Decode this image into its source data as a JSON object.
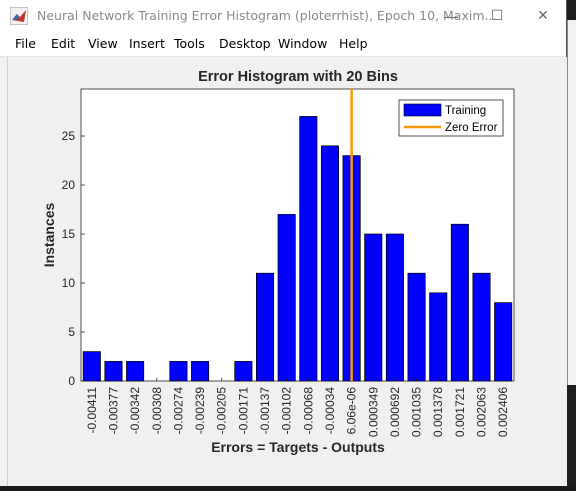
{
  "window": {
    "title": "Neural Network Training Error Histogram (ploterrhist), Epoch 10, Maxim...",
    "minimize_glyph": "—",
    "maximize_glyph": "☐",
    "close_glyph": "✕"
  },
  "menu": [
    "File",
    "Edit",
    "View",
    "Insert",
    "Tools",
    "Desktop",
    "Window",
    "Help"
  ],
  "colors": {
    "bar": "#0000ff",
    "zero_line": "#ff9900"
  },
  "chart_data": {
    "type": "bar",
    "title": "Error Histogram with 20 Bins",
    "xlabel": "Errors = Targets - Outputs",
    "ylabel": "Instances",
    "categories": [
      "-0.00411",
      "-0.00377",
      "-0.00342",
      "-0.00308",
      "-0.00274",
      "-0.00239",
      "-0.00205",
      "-0.00171",
      "-0.00137",
      "-0.00102",
      "-0.00068",
      "-0.00034",
      "6.06e-06",
      "0.000349",
      "0.000692",
      "0.001035",
      "0.001378",
      "0.001721",
      "0.002063",
      "0.002406"
    ],
    "values": [
      3,
      2,
      2,
      0,
      2,
      2,
      0,
      2,
      11,
      17,
      27,
      24,
      23,
      15,
      15,
      11,
      9,
      16,
      11,
      8
    ],
    "ylim": [
      0,
      29.8
    ],
    "yticks": [
      0,
      5,
      10,
      15,
      20,
      25
    ],
    "zero_error_bin_index": 12,
    "legend": {
      "position": "top-right",
      "entries": [
        "Training",
        "Zero Error"
      ]
    }
  }
}
